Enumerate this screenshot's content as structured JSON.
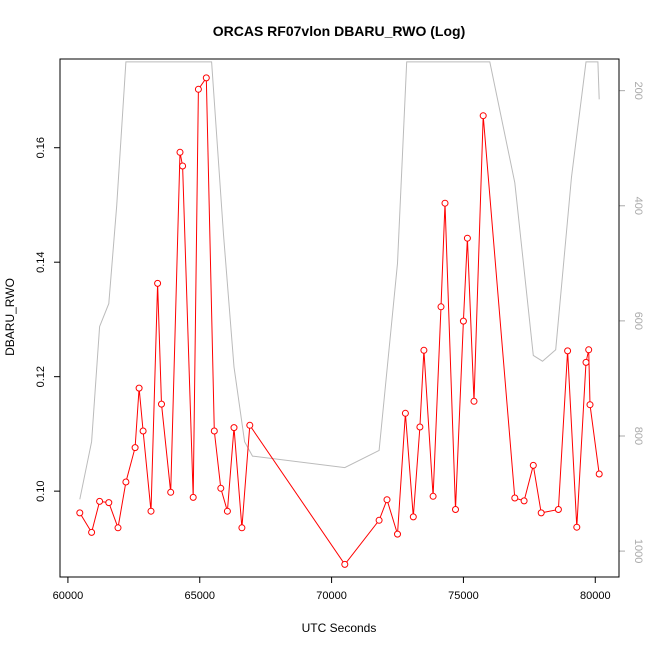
{
  "chart_data": {
    "type": "line",
    "title": "ORCAS RF07vlon DBARU_RWO (Log)",
    "xlabel": "UTC Seconds",
    "ylabel": "DBARU_RWO",
    "xlim": [
      59700,
      80900
    ],
    "ylim": [
      0.085,
      0.1755
    ],
    "x_ticks": [
      60000,
      65000,
      70000,
      75000,
      80000
    ],
    "x_tick_labels": [
      "60000",
      "65000",
      "70000",
      "75000",
      "80000"
    ],
    "y_ticks": [
      0.1,
      0.12,
      0.14,
      0.16
    ],
    "y_tick_labels": [
      "0.10",
      "0.12",
      "0.14",
      "0.16"
    ],
    "y2_ticks": [
      200,
      400,
      600,
      800,
      1000
    ],
    "y2_tick_labels": [
      "200",
      "400",
      "600",
      "800",
      "1000"
    ],
    "y2lim": [
      1045,
      145
    ],
    "y2_reversed": true,
    "grid": false,
    "series": [
      {
        "color": "#ff0000",
        "marker": "open-circle",
        "axis": "left",
        "x": [
          60450,
          60900,
          61200,
          61550,
          61900,
          62200,
          62550,
          62700,
          62850,
          63150,
          63400,
          63550,
          63900,
          64250,
          64350,
          64750,
          64950,
          65250,
          65550,
          65800,
          66050,
          66300,
          66600,
          66900,
          70500,
          71800,
          72100,
          72500,
          72800,
          73100,
          73350,
          73500,
          73850,
          74150,
          74300,
          74700,
          75000,
          75150,
          75400,
          75750,
          76950,
          77300,
          77650,
          77950,
          78600,
          78950,
          79300,
          79650,
          79750,
          79800,
          80150
        ],
        "y": [
          0.0962,
          0.0928,
          0.0982,
          0.098,
          0.0936,
          0.1016,
          0.1076,
          0.118,
          0.1105,
          0.0965,
          0.1363,
          0.1152,
          0.0998,
          0.1592,
          0.1568,
          0.0989,
          0.1702,
          0.1722,
          0.1105,
          0.1005,
          0.0965,
          0.1111,
          0.0936,
          0.1115,
          0.0872,
          0.0949,
          0.0985,
          0.0925,
          0.1136,
          0.0955,
          0.1112,
          0.1246,
          0.0991,
          0.1322,
          0.1503,
          0.0968,
          0.1297,
          0.1442,
          0.1157,
          0.1656,
          0.0988,
          0.0983,
          0.1045,
          0.0962,
          0.0968,
          0.1245,
          0.0937,
          0.1225,
          0.1247,
          0.1151,
          0.103
        ]
      },
      {
        "color": "#bbbbbb",
        "marker": "none",
        "axis": "right",
        "x": [
          60450,
          60900,
          61200,
          61550,
          61850,
          62200,
          64950,
          65450,
          65900,
          66300,
          66700,
          67000,
          70500,
          71800,
          72500,
          72850,
          73500,
          74100,
          75000,
          75600,
          76000,
          76950,
          77650,
          78000,
          78500,
          79100,
          79650,
          80100,
          80150
        ],
        "y": [
          910,
          810,
          610,
          570,
          400,
          150,
          150,
          150,
          450,
          680,
          810,
          835,
          855,
          825,
          500,
          150,
          150,
          150,
          150,
          150,
          150,
          360,
          660,
          670,
          650,
          350,
          150,
          150,
          215
        ]
      }
    ]
  }
}
